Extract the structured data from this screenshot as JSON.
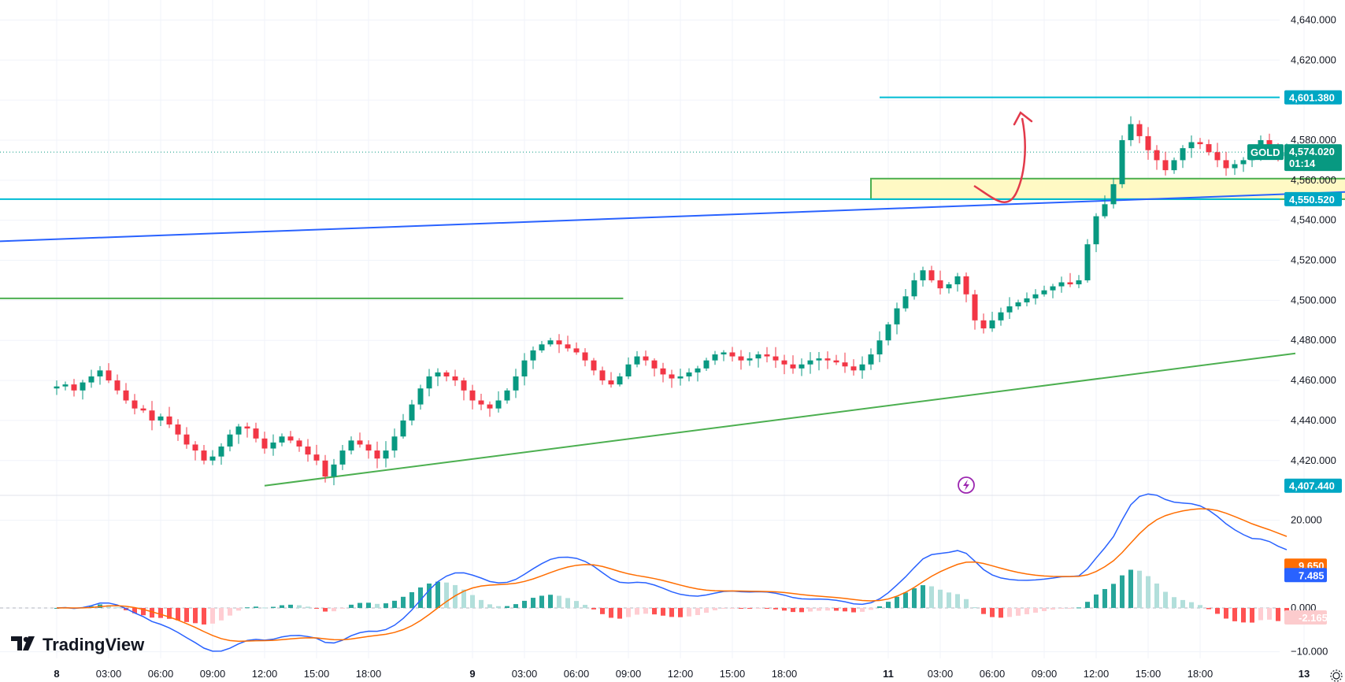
{
  "brand": {
    "name": "TradingView"
  },
  "chart_data": {
    "type": "candlestick",
    "symbol": "GOLD",
    "countdown": "01:14",
    "price_axis": {
      "range": [
        4403.0,
        4650.0
      ],
      "ticks": [
        4420,
        4440,
        4460,
        4480,
        4500,
        4520,
        4540,
        4560,
        4580,
        4600,
        4620,
        4640
      ],
      "tick_labels": [
        "4,420.000",
        "4,440.000",
        "4,460.000",
        "4,480.000",
        "4,500.000",
        "4,520.000",
        "4,540.000",
        "4,560.000",
        "4,580.000",
        "4,600.000",
        "4,620.000",
        "4,640.000"
      ]
    },
    "price_tags": [
      {
        "label": "4,601.380",
        "value": 4601.38,
        "color": "#00a7c4"
      },
      {
        "label": "4,574.020",
        "value": 4574.02,
        "color": "#089981",
        "kind": "last"
      },
      {
        "label": "4,550.520",
        "value": 4550.52,
        "color": "#00a7c4"
      },
      {
        "label": "4,407.440",
        "value": 4407.44,
        "color": "#00a7c4"
      }
    ],
    "time_axis": {
      "labels": [
        "8",
        "03:00",
        "06:00",
        "09:00",
        "12:00",
        "15:00",
        "18:00",
        "9",
        "03:00",
        "06:00",
        "09:00",
        "12:00",
        "15:00",
        "18:00",
        "11",
        "03:00",
        "06:00",
        "09:00",
        "12:00",
        "15:00",
        "18:00",
        "13"
      ],
      "bold_labels": [
        "8",
        "9",
        "11",
        "13"
      ],
      "hours": [
        0,
        3,
        6,
        9,
        12,
        15,
        18,
        24,
        27,
        30,
        33,
        36,
        39,
        42,
        48,
        51,
        54,
        57,
        60,
        63,
        66,
        72
      ]
    },
    "close_series": {
      "hours_start": 0.0,
      "step_hours": 0.5,
      "values": [
        4457,
        4458,
        4455,
        4459,
        4462,
        4465,
        4460,
        4455,
        4450,
        4446,
        4445,
        4440,
        4442,
        4438,
        4433,
        4428,
        4425,
        4420,
        4422,
        4427,
        4433,
        4437,
        4436,
        4431,
        4426,
        4429,
        4432,
        4430,
        4427,
        4423,
        4420,
        4412,
        4418,
        4425,
        4430,
        4428,
        4425,
        4421,
        4425,
        4432,
        4440,
        4448,
        4456,
        4462,
        4464,
        4462,
        4460,
        4455,
        4450,
        4448,
        4446,
        4450,
        4455,
        4462,
        4470,
        4475,
        4478,
        4480,
        4478,
        4476,
        4474,
        4470,
        4465,
        4460,
        4458,
        4462,
        4468,
        4472,
        4470,
        4466,
        4463,
        4461,
        4462,
        4464,
        4466,
        4470,
        4473,
        4474,
        4472,
        4470,
        4471,
        4473,
        4472,
        4470,
        4468,
        4466,
        4468,
        4470,
        4471,
        4470,
        4469,
        4467,
        4465,
        4468,
        4473,
        4480,
        4488,
        4496,
        4502,
        4510,
        4515,
        4510,
        4506,
        4508,
        4512,
        4503,
        4490,
        4486,
        4490,
        4494,
        4497,
        4499,
        4501,
        4503,
        4505,
        4507,
        4509,
        4508,
        4510,
        4528,
        4542,
        4548,
        4558,
        4580,
        4588,
        4582,
        4575,
        4570,
        4565,
        4570,
        4576,
        4579,
        4578,
        4574,
        4570,
        4566,
        4568,
        4570,
        4572,
        4580,
        4577,
        4572,
        4574
      ]
    },
    "lines": {
      "support_horizontal": 4550.52,
      "resistance_horizontal": 4601.38,
      "blue_trendline": {
        "from": [
          0,
          4529.5
        ],
        "to": [
          75.5,
          4554.5
        ]
      },
      "green_trendline": {
        "from": [
          12,
          4407.44
        ],
        "to": [
          71.5,
          4473.5
        ]
      },
      "green_horizontal": {
        "from_hour": 0,
        "to_hour": 32.7,
        "price": 4501.0
      },
      "zone": {
        "from_hour": 47.0,
        "to_hour": 75.5,
        "low": 4550.52,
        "high": 4560.8
      }
    },
    "macd": {
      "range": [
        -11.5,
        25.5
      ],
      "ticks": [
        20,
        0,
        -10
      ],
      "tick_labels": [
        "20.000",
        "0.000",
        "−10.000"
      ],
      "tags": [
        {
          "label": "9.650",
          "value": 9.65,
          "color": "#ff6d00"
        },
        {
          "label": "7.485",
          "value": 7.485,
          "color": "#2962ff"
        },
        {
          "label": "-2.165",
          "value": -2.165,
          "color": "#fccbcd",
          "text_color": "#d4344a"
        }
      ]
    }
  }
}
